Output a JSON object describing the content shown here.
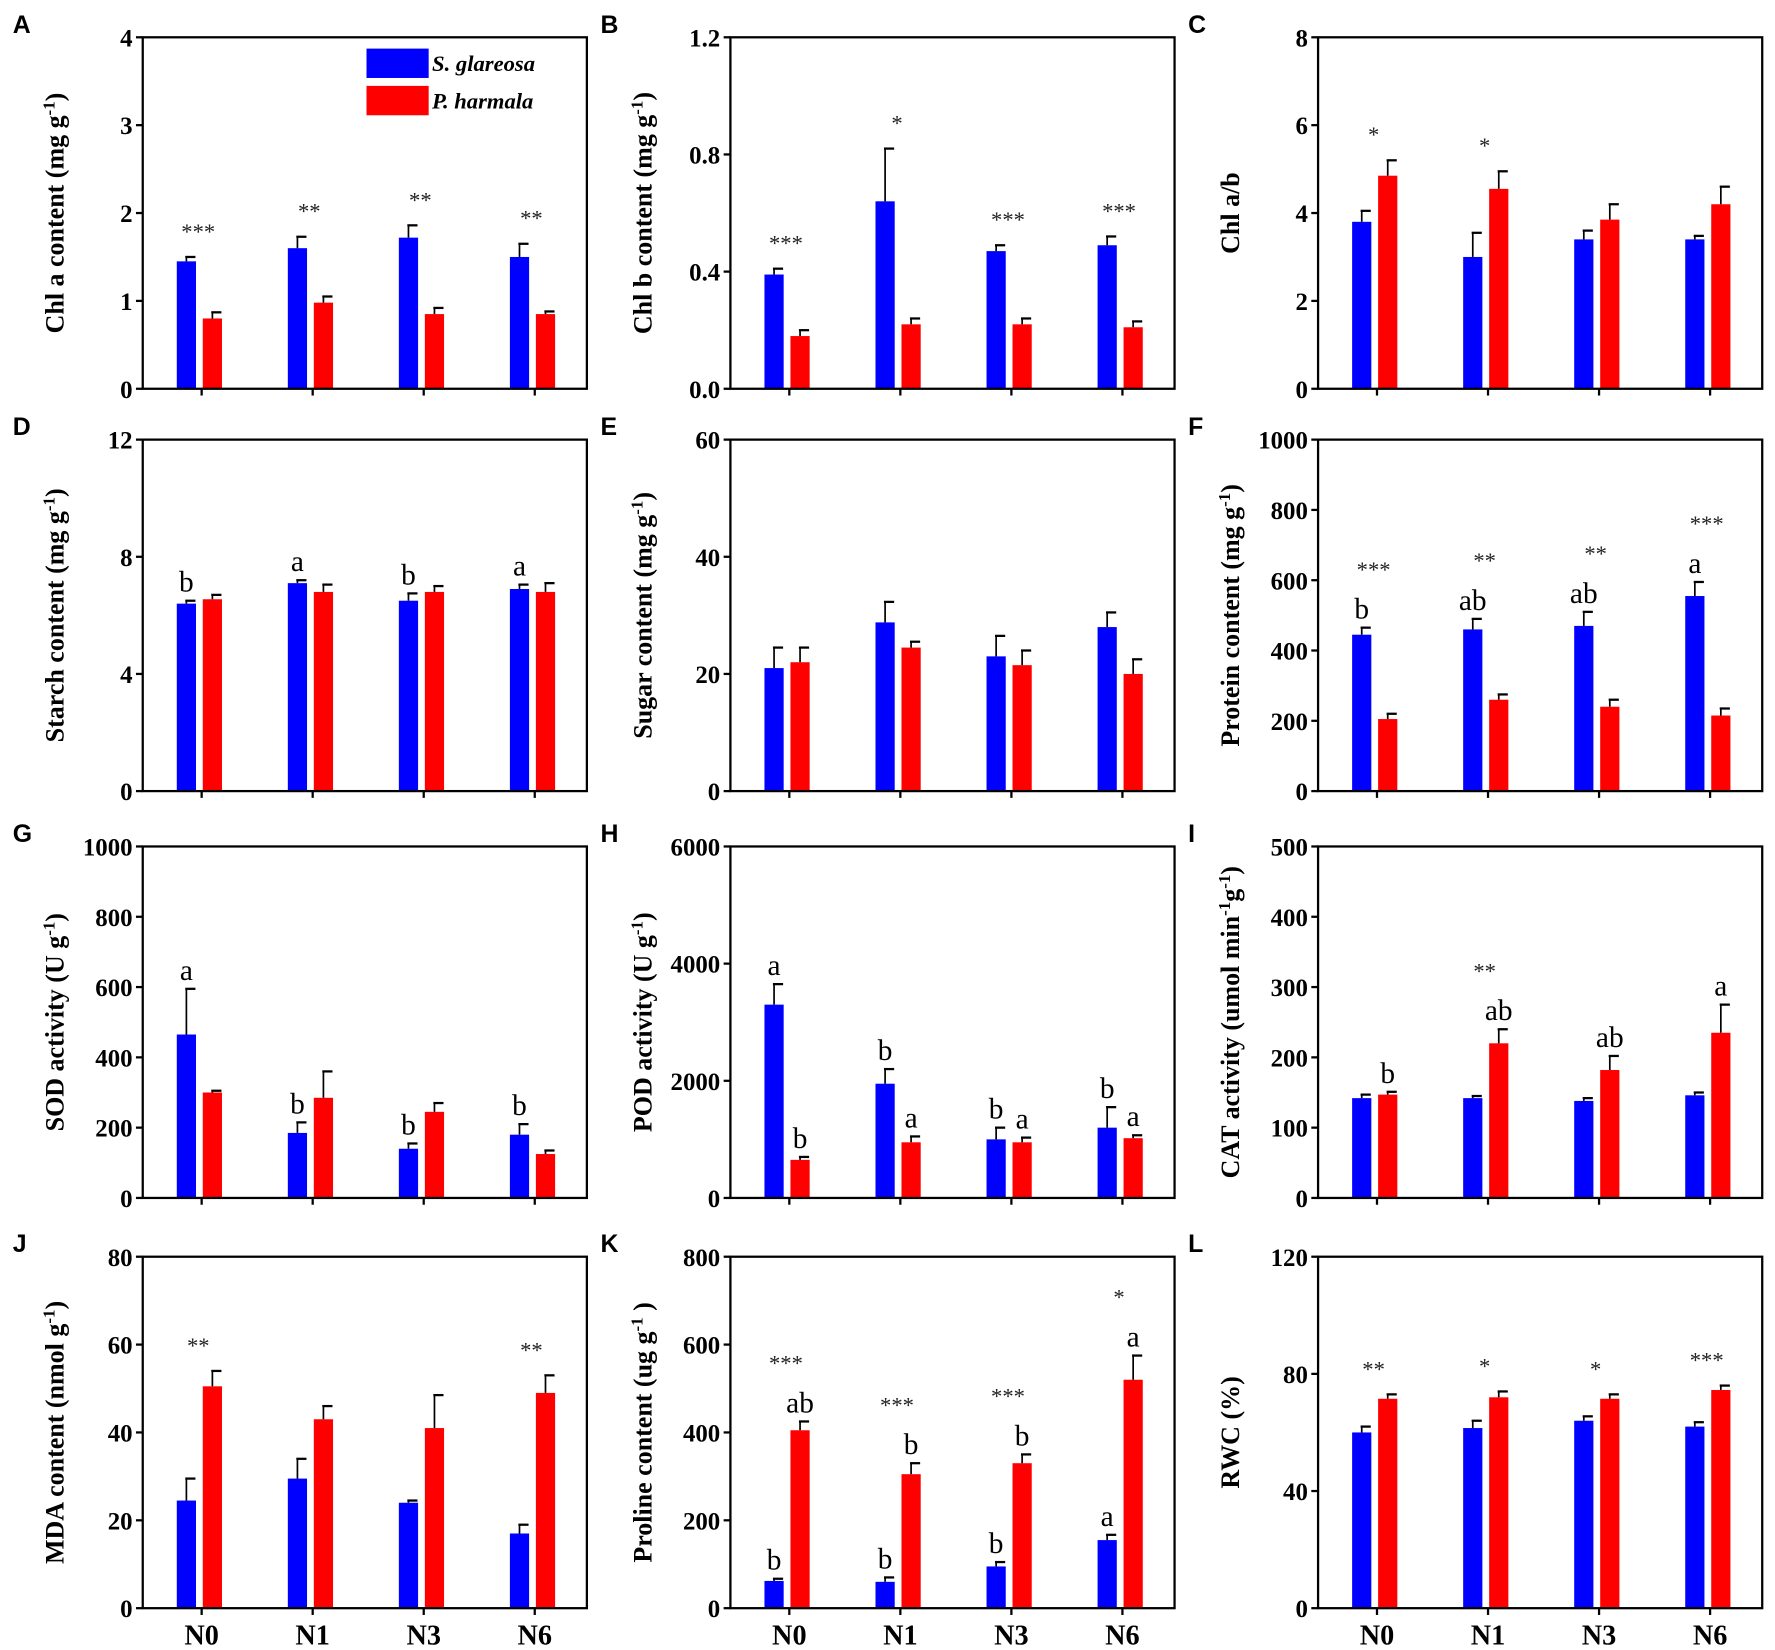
{
  "chart_data": {
    "type": "bar",
    "categories": [
      "N0",
      "N1",
      "N3",
      "N6"
    ],
    "legend": {
      "placement": "top-right of panel A",
      "series": [
        "S. glareosa",
        "P. harmala"
      ]
    },
    "colors": {
      "S. glareosa": "#0000ff",
      "P. harmala": "#ff0000"
    },
    "panels": [
      {
        "label": "A",
        "ylabel": "Chl a content (mg g",
        "ysup": "-1",
        "yend": ")",
        "ylim": [
          0,
          4
        ],
        "ticks": [
          "0",
          "1",
          "2",
          "3",
          "4"
        ],
        "series": [
          {
            "name": "S. glareosa",
            "values": [
              1.45,
              1.6,
              1.72,
              1.5
            ],
            "errors": [
              0.05,
              0.13,
              0.14,
              0.15
            ],
            "letters": [
              "",
              "",
              "",
              ""
            ]
          },
          {
            "name": "P. harmala",
            "values": [
              0.8,
              0.98,
              0.85,
              0.85
            ],
            "errors": [
              0.07,
              0.07,
              0.07,
              0.03
            ],
            "letters": [
              "",
              "",
              "",
              ""
            ]
          }
        ],
        "stars": [
          "***",
          "**",
          "**",
          "**"
        ]
      },
      {
        "label": "B",
        "ylabel": "Chl b content (mg g",
        "ysup": "-1",
        "yend": ")",
        "ylim": [
          0,
          1.2
        ],
        "ticks": [
          "0.0",
          "0.4",
          "0.8",
          "1.2"
        ],
        "series": [
          {
            "name": "S. glareosa",
            "values": [
              0.39,
              0.64,
              0.47,
              0.49
            ],
            "errors": [
              0.02,
              0.18,
              0.02,
              0.03
            ],
            "letters": [
              "",
              "",
              "",
              ""
            ]
          },
          {
            "name": "P. harmala",
            "values": [
              0.18,
              0.22,
              0.22,
              0.21
            ],
            "errors": [
              0.02,
              0.02,
              0.02,
              0.02
            ],
            "letters": [
              "",
              "",
              "",
              ""
            ]
          }
        ],
        "stars": [
          "***",
          "*",
          "***",
          "***"
        ]
      },
      {
        "label": "C",
        "ylabel": "Chl a/b",
        "ysup": "",
        "yend": "",
        "ylim": [
          0,
          8
        ],
        "ticks": [
          "0",
          "2",
          "4",
          "6",
          "8"
        ],
        "series": [
          {
            "name": "S. glareosa",
            "values": [
              3.8,
              3.0,
              3.4,
              3.4
            ],
            "errors": [
              0.25,
              0.55,
              0.2,
              0.08
            ],
            "letters": [
              "",
              "",
              "",
              ""
            ]
          },
          {
            "name": "P. harmala",
            "values": [
              4.85,
              4.55,
              3.85,
              4.2
            ],
            "errors": [
              0.35,
              0.4,
              0.35,
              0.4
            ],
            "letters": [
              "",
              "",
              "",
              ""
            ]
          }
        ],
        "stars": [
          "*",
          "*",
          "",
          ""
        ]
      },
      {
        "label": "D",
        "ylabel": "Starch content (mg g",
        "ysup": "-1",
        "yend": ")",
        "ylim": [
          0,
          12
        ],
        "ticks": [
          "0",
          "4",
          "8",
          "12"
        ],
        "series": [
          {
            "name": "S. glareosa",
            "values": [
              6.4,
              7.1,
              6.5,
              6.9
            ],
            "errors": [
              0.1,
              0.1,
              0.25,
              0.15
            ],
            "letters": [
              "b",
              "a",
              "b",
              "a"
            ]
          },
          {
            "name": "P. harmala",
            "values": [
              6.55,
              6.8,
              6.8,
              6.8
            ],
            "errors": [
              0.15,
              0.25,
              0.2,
              0.3
            ],
            "letters": [
              "",
              "",
              "",
              ""
            ]
          }
        ],
        "stars": [
          "",
          "",
          "",
          ""
        ]
      },
      {
        "label": "E",
        "ylabel": "Sugar content (mg g",
        "ysup": "-1",
        "yend": ")",
        "ylim": [
          0,
          60
        ],
        "ticks": [
          "0",
          "20",
          "40",
          "60"
        ],
        "series": [
          {
            "name": "S. glareosa",
            "values": [
              21,
              28.8,
              23,
              28
            ],
            "errors": [
              3.5,
              3.5,
              3.5,
              2.5
            ],
            "letters": [
              "",
              "",
              "",
              ""
            ]
          },
          {
            "name": "P. harmala",
            "values": [
              22,
              24.5,
              21.5,
              20
            ],
            "errors": [
              2.5,
              1,
              2.5,
              2.5
            ],
            "letters": [
              "",
              "",
              "",
              ""
            ]
          }
        ],
        "stars": [
          "",
          "",
          "",
          ""
        ]
      },
      {
        "label": "F",
        "ylabel": "Protein content (mg g",
        "ysup": "-1",
        "yend": ")",
        "ylim": [
          0,
          1000
        ],
        "ticks": [
          "0",
          "200",
          "400",
          "600",
          "800",
          "1000"
        ],
        "series": [
          {
            "name": "S. glareosa",
            "values": [
              445,
              460,
              470,
              555
            ],
            "errors": [
              20,
              30,
              40,
              40
            ],
            "letters": [
              "b",
              "ab",
              "ab",
              "a"
            ]
          },
          {
            "name": "P. harmala",
            "values": [
              205,
              260,
              240,
              215
            ],
            "errors": [
              15,
              15,
              20,
              20
            ],
            "letters": [
              "",
              "",
              "",
              ""
            ]
          }
        ],
        "stars": [
          "***",
          "**",
          "**",
          "***"
        ]
      },
      {
        "label": "G",
        "ylabel": "SOD activity (U g",
        "ysup": "-1",
        "yend": ")",
        "ylim": [
          0,
          1000
        ],
        "ticks": [
          "0",
          "200",
          "400",
          "600",
          "800",
          "1000"
        ],
        "series": [
          {
            "name": "S. glareosa",
            "values": [
              465,
              185,
              140,
              180
            ],
            "errors": [
              130,
              30,
              15,
              30
            ],
            "letters": [
              "a",
              "b",
              "b",
              "b"
            ]
          },
          {
            "name": "P. harmala",
            "values": [
              300,
              285,
              245,
              125
            ],
            "errors": [
              5,
              75,
              25,
              10
            ],
            "letters": [
              "",
              "",
              "",
              ""
            ]
          }
        ],
        "stars": [
          "",
          "",
          "",
          ""
        ]
      },
      {
        "label": "H",
        "ylabel": "POD activity (U g",
        "ysup": "-1",
        "yend": ")",
        "ylim": [
          0,
          6000
        ],
        "ticks": [
          "0",
          "2000",
          "4000",
          "6000"
        ],
        "series": [
          {
            "name": "S. glareosa",
            "values": [
              3300,
              1950,
              1000,
              1200
            ],
            "errors": [
              350,
              250,
              200,
              350
            ],
            "letters": [
              "a",
              "b",
              "b",
              "b"
            ]
          },
          {
            "name": "P. harmala",
            "values": [
              650,
              950,
              950,
              1020
            ],
            "errors": [
              50,
              100,
              80,
              50
            ],
            "letters": [
              "b",
              "a",
              "a",
              "a"
            ]
          }
        ],
        "stars": [
          "",
          "",
          "",
          ""
        ]
      },
      {
        "label": "I",
        "ylabel": "CAT activity  (umol min",
        "ysup": "-1",
        "yend": "g",
        "ysup2": "-1",
        "yend2": ")",
        "ylim": [
          0,
          500
        ],
        "ticks": [
          "0",
          "100",
          "200",
          "300",
          "400",
          "500"
        ],
        "series": [
          {
            "name": "S. glareosa",
            "values": [
              142,
              142,
              138,
              146
            ],
            "errors": [
              5,
              3,
              4,
              4
            ],
            "letters": [
              "",
              "",
              "",
              ""
            ]
          },
          {
            "name": "P. harmala",
            "values": [
              147,
              220,
              182,
              235
            ],
            "errors": [
              4,
              20,
              20,
              40
            ],
            "letters": [
              "b",
              "ab",
              "ab",
              "a"
            ]
          }
        ],
        "stars": [
          "",
          "**",
          "",
          ""
        ]
      },
      {
        "label": "J",
        "ylabel": "MDA content (nmol g",
        "ysup": "-1",
        "yend": ")",
        "ylim": [
          0,
          80
        ],
        "ticks": [
          "0",
          "20",
          "40",
          "60",
          "80"
        ],
        "series": [
          {
            "name": "S. glareosa",
            "values": [
              24.5,
              29.5,
              24,
              17
            ],
            "errors": [
              5,
              4.5,
              0.5,
              2
            ],
            "letters": [
              "",
              "",
              "",
              ""
            ]
          },
          {
            "name": "P. harmala",
            "values": [
              50.5,
              43,
              41,
              49
            ],
            "errors": [
              3.5,
              3,
              7.5,
              4
            ],
            "letters": [
              "",
              "",
              "",
              ""
            ]
          }
        ],
        "stars": [
          "**",
          "",
          "",
          "**"
        ]
      },
      {
        "label": "K",
        "ylabel": "Proline content (ug g",
        "ysup": "-1",
        "yend": " )",
        "ylim": [
          0,
          800
        ],
        "ticks": [
          "0",
          "200",
          "400",
          "600",
          "800"
        ],
        "series": [
          {
            "name": "S. glareosa",
            "values": [
              62,
              60,
              95,
              155
            ],
            "errors": [
              5,
              10,
              10,
              12
            ],
            "letters": [
              "b",
              "b",
              "b",
              "a"
            ]
          },
          {
            "name": "P. harmala",
            "values": [
              405,
              305,
              330,
              520
            ],
            "errors": [
              20,
              25,
              20,
              55
            ],
            "letters": [
              "ab",
              "b",
              "b",
              "a"
            ]
          }
        ],
        "stars": [
          "***",
          "***",
          "***",
          "*"
        ]
      },
      {
        "label": "L",
        "ylabel": "RWC (%)",
        "ysup": "",
        "yend": "",
        "ylim": [
          0,
          120
        ],
        "ticks": [
          "0",
          "40",
          "80",
          "120"
        ],
        "series": [
          {
            "name": "S. glareosa",
            "values": [
              60,
              61.5,
              64,
              62
            ],
            "errors": [
              2,
              2.5,
              1.5,
              1.5
            ],
            "letters": [
              "",
              "",
              "",
              ""
            ]
          },
          {
            "name": "P. harmala",
            "values": [
              71.5,
              72,
              71.5,
              74.5
            ],
            "errors": [
              1.5,
              2,
              1.5,
              1.5
            ],
            "letters": [
              "",
              "",
              "",
              ""
            ]
          }
        ],
        "stars": [
          "**",
          "*",
          "*",
          "***"
        ]
      }
    ]
  }
}
